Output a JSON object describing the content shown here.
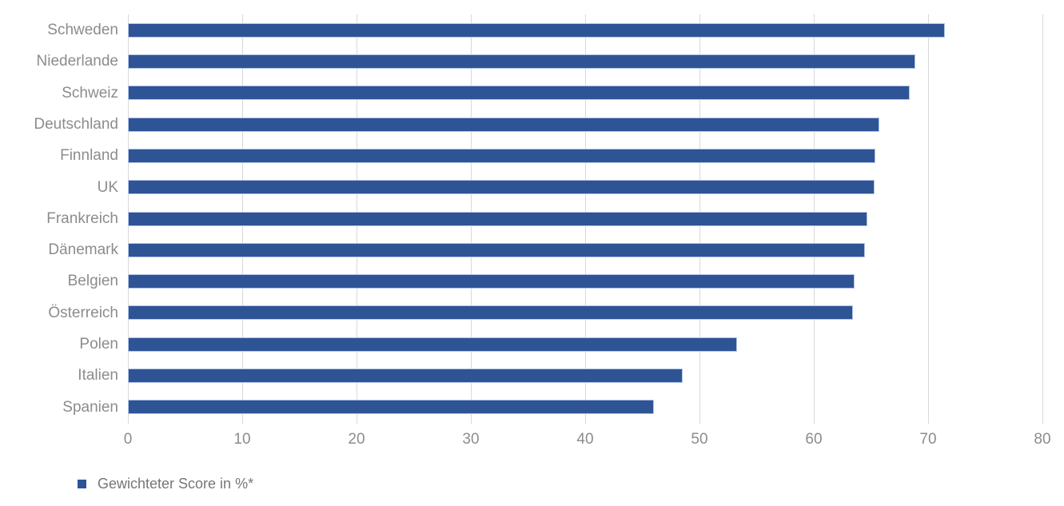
{
  "chart_data": {
    "type": "bar",
    "orientation": "horizontal",
    "title": "",
    "categories": [
      "Schweden",
      "Niederlande",
      "Schweiz",
      "Deutschland",
      "Finnland",
      "UK",
      "Frankreich",
      "Dänemark",
      "Belgien",
      "Österreich",
      "Polen",
      "Italien",
      "Spanien"
    ],
    "values": [
      71.5,
      68.9,
      68.4,
      65.7,
      65.4,
      65.3,
      64.7,
      64.5,
      63.6,
      63.4,
      53.3,
      48.5,
      46.0
    ],
    "legend_label": "Gewichteter Score in %*",
    "xlabel": "",
    "ylabel": "",
    "xlim": [
      0,
      80
    ],
    "xticks": [
      0,
      10,
      20,
      30,
      40,
      50,
      60,
      70,
      80
    ],
    "grid": true,
    "legend_position": "bottom-left",
    "colors": {
      "bar_fill": "#2f5496",
      "bar_border": "#b4c6e7",
      "gridline": "#d9d9d9",
      "axis_label": "#8c8c8c",
      "legend_text": "#767676",
      "background": "#ffffff"
    }
  }
}
